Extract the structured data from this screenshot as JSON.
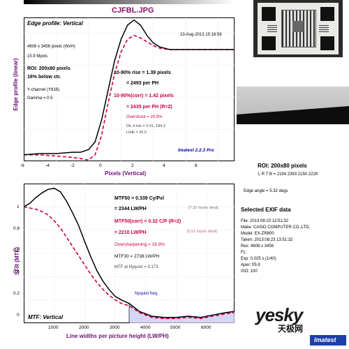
{
  "file_title": "CJFBL.JPG",
  "top_plot": {
    "heading": "Edge profile: Vertical",
    "date": "23-Aug-2013 15:18:56",
    "pixels_line": "4608 x 3456 pixels (WxH)",
    "mpxls": "15.9 Mpxls",
    "roi": "ROI: 200x80 pixels",
    "below": "16% below ctr.",
    "channel": "Y-channel  (Y816)",
    "gamma": "Gamma = 0.5",
    "rise": "10-90% rise = 1.39 pixels",
    "rise_ph": "= 2493 per PH",
    "rise_corr": "10-90%(corr) = 1.42 pixels",
    "rise_corr_ph": "= 2435 per PH  (R=2)",
    "overshoot": "Overshoot = 20.9%",
    "dk": "Dk, lt lvls = 9.01, 184.3",
    "ltdk": "Lt/dk = 20.5",
    "version": "Imatest 2.2.3 Pro",
    "ylabel": "Edge profile (linear)",
    "xlabel": "Pixels (Vertical)",
    "xticks": [
      "-6",
      "-4",
      "-2",
      "0",
      "2",
      "4",
      "6"
    ]
  },
  "right_panel": {
    "roi_title": "ROI: 200x80 pixels",
    "lrtb": "L R T B = 2194 2393  2150 2229",
    "edge_angle": "Edge angle = 5.32 degs",
    "exif_title": "Selected EXIF data",
    "exif": [
      "File:   2013:08:23 13:51:32",
      "Make:  CASIO COMPUTER CO.,LTD.",
      "Model:  EX-ZR800",
      "Taken:  2013:08:23 13:51:32",
      "Res:   4608 x 3456",
      "FL:",
      "Exp:   0.025 s  (1/40)",
      "Aper:  f/5.9",
      "ISO:   100"
    ]
  },
  "bottom_plot": {
    "mtf50": "MTF50 = 0.339 Cy/Pxl",
    "mtf50_lw": "= 2344 LW/PH",
    "mtf50_ideal": "[7.32 mpxls ideal]",
    "mtf50corr": "MTF50(corr) = 0.32 C/P  (R=2)",
    "mtf50corr_lw": "= 2210 LW/PH",
    "mtf50corr_ideal": "[6.51 mpxls ideal]",
    "oversharp": "Oversharpening = 16.9%",
    "mtf30": "MTF30 = 2738 LW/PH",
    "nyq_val": "MTF at Nyquist = 0.173",
    "nyq_label": "Nyquist freq.",
    "mode": "MTF: Vertical",
    "ylabel": "SFR (MTF)",
    "xlabel": "Line widths per picture height (LW/PH)",
    "xticks": [
      "1000",
      "2000",
      "3000",
      "4000",
      "5000",
      "6000"
    ],
    "yticks": [
      "1",
      "0.8",
      "0.6",
      "0.4",
      "0.2",
      "0"
    ]
  },
  "watermark": {
    "yesky": "yesky",
    "brand": "天极网",
    "imatest": "Imatest"
  },
  "colors": {
    "measured": "#000000",
    "corrected": "#cc0044",
    "nyquist": "#c8c8f0",
    "accent": "#0000cc"
  },
  "chart_data": [
    {
      "type": "line",
      "title": "",
      "xlabel": "Pixels (Vertical)",
      "ylabel": "Edge profile (linear)",
      "xlim": [
        -6,
        7
      ],
      "ylim": [
        0,
        1.12
      ],
      "series": [
        {
          "x": [
            -6,
            -5,
            -4,
            -3,
            -2.5,
            -2,
            -1.6,
            -1.2,
            -0.8,
            -0.4,
            0,
            0.4,
            0.8,
            1.2,
            1.6,
            2,
            2.4,
            3,
            4,
            5,
            6,
            7
          ],
          "y": [
            0.05,
            0.06,
            0.06,
            0.07,
            0.07,
            0.09,
            0.15,
            0.32,
            0.55,
            0.78,
            0.95,
            1.06,
            1.1,
            1.06,
            0.98,
            0.92,
            0.89,
            0.87,
            0.87,
            0.87,
            0.87,
            0.87
          ]
        },
        {
          "x": [
            -6,
            -5,
            -4,
            -3,
            -2.5,
            -2,
            -1.6,
            -1.2,
            -0.8,
            -0.4,
            0,
            0.4,
            0.8,
            1.2,
            1.6,
            2,
            2.4,
            3,
            4,
            5,
            6,
            7
          ],
          "y": [
            0.05,
            0.05,
            0.04,
            0.03,
            0.02,
            0.01,
            0.05,
            0.2,
            0.45,
            0.68,
            0.85,
            0.95,
            0.98,
            0.96,
            0.93,
            0.9,
            0.88,
            0.87,
            0.87,
            0.87,
            0.87,
            0.87
          ]
        }
      ]
    },
    {
      "type": "line",
      "title": "",
      "xlabel": "Line widths per picture height (LW/PH)",
      "ylabel": "SFR (MTF)",
      "xlim": [
        0,
        6912
      ],
      "ylim": [
        0,
        1.2
      ],
      "series": [
        {
          "x": [
            0,
            200,
            400,
            600,
            800,
            1000,
            1200,
            1400,
            1600,
            1800,
            2000,
            2200,
            2400,
            2600,
            2800,
            3000,
            3200,
            3456,
            3800,
            4200,
            4600,
            5000,
            5400,
            5800,
            6200,
            6600,
            6900
          ],
          "y": [
            1.0,
            1.03,
            1.08,
            1.12,
            1.15,
            1.16,
            1.13,
            1.05,
            0.95,
            0.84,
            0.7,
            0.57,
            0.45,
            0.36,
            0.29,
            0.23,
            0.2,
            0.17,
            0.1,
            0.06,
            0.05,
            0.05,
            0.06,
            0.05,
            0.07,
            0.09,
            0.1
          ]
        },
        {
          "x": [
            0,
            200,
            400,
            600,
            800,
            1000,
            1200,
            1400,
            1600,
            1800,
            2000,
            2200,
            2400,
            2600,
            2800,
            3000,
            3200,
            3456,
            3800,
            4200,
            4600,
            5000,
            5400,
            5800,
            6200,
            6600,
            6900
          ],
          "y": [
            1.0,
            0.99,
            0.98,
            0.96,
            0.93,
            0.88,
            0.82,
            0.74,
            0.66,
            0.58,
            0.5,
            0.42,
            0.35,
            0.29,
            0.24,
            0.2,
            0.17,
            0.15,
            0.09,
            0.05,
            0.04,
            0.04,
            0.05,
            0.04,
            0.06,
            0.08,
            0.09
          ]
        }
      ]
    }
  ]
}
